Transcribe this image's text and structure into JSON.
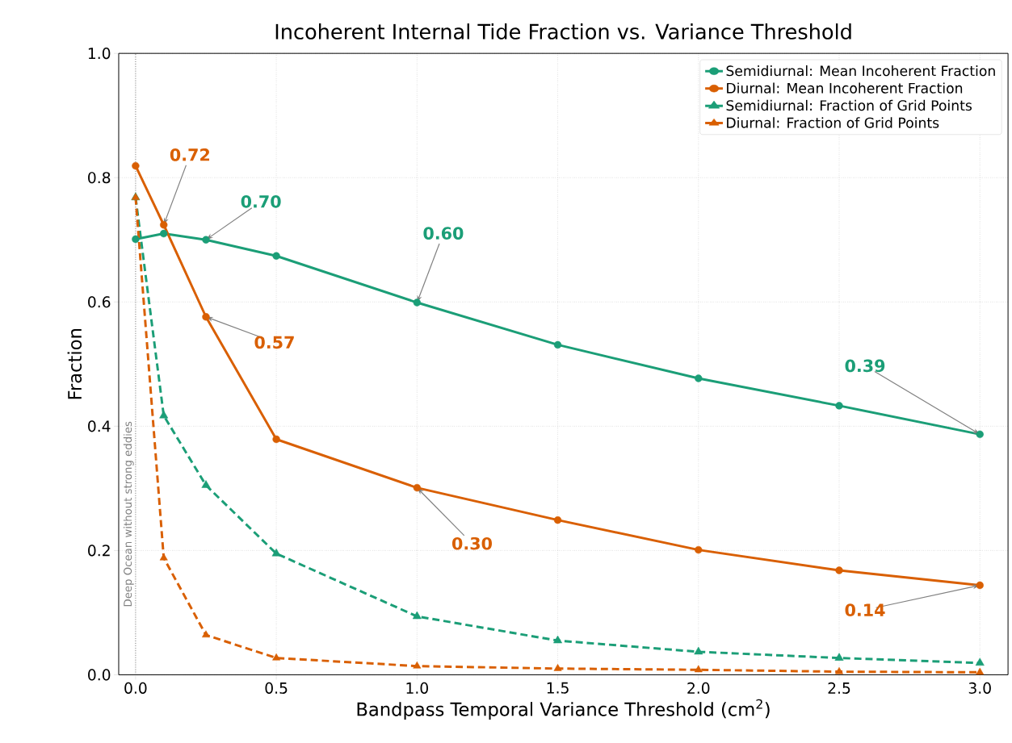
{
  "chart_data": {
    "type": "line",
    "title": "Incoherent Internal Tide Fraction vs. Variance Threshold",
    "xlabel": "Bandpass Temporal Variance Threshold (cm$^{2}$)",
    "ylabel": "Fraction",
    "x": [
      0,
      0.1,
      0.25,
      0.5,
      1.0,
      1.5,
      2.0,
      2.5,
      3.0
    ],
    "series": [
      {
        "name": "Semidiurnal: Mean Incoherent Fraction",
        "color": "#1b9e77",
        "marker": "circle",
        "line_style": "solid",
        "values": [
          0.701,
          0.71,
          0.7,
          0.674,
          0.599,
          0.531,
          0.477,
          0.433,
          0.387
        ]
      },
      {
        "name": "Diurnal: Mean Incoherent Fraction",
        "color": "#d95f02",
        "marker": "circle",
        "line_style": "solid",
        "values": [
          0.819,
          0.724,
          0.576,
          0.379,
          0.301,
          0.249,
          0.201,
          0.168,
          0.144
        ]
      },
      {
        "name": "Semidiurnal: Fraction of Grid Points",
        "color": "#1b9e77",
        "marker": "triangle",
        "line_style": "dashed",
        "values": [
          0.768,
          0.417,
          0.305,
          0.195,
          0.094,
          0.055,
          0.037,
          0.027,
          0.019
        ]
      },
      {
        "name": "Diurnal: Fraction of Grid Points",
        "color": "#d95f02",
        "marker": "triangle",
        "line_style": "dashed",
        "values": [
          0.768,
          0.188,
          0.064,
          0.027,
          0.014,
          0.01,
          0.008,
          0.005,
          0.004
        ]
      }
    ],
    "xlim": [
      -0.06,
      3.1
    ],
    "ylim": [
      0,
      1
    ],
    "xticks": [
      {
        "value": 0,
        "label": "0.0"
      },
      {
        "value": 0.5,
        "label": "0.5"
      },
      {
        "value": 1,
        "label": "1.0"
      },
      {
        "value": 1.5,
        "label": "1.5"
      },
      {
        "value": 2,
        "label": "2.0"
      },
      {
        "value": 2.5,
        "label": "2.5"
      },
      {
        "value": 3,
        "label": "3.0"
      }
    ],
    "yticks": [
      {
        "value": 0,
        "label": "0.0"
      },
      {
        "value": 0.2,
        "label": "0.2"
      },
      {
        "value": 0.4,
        "label": "0.4"
      },
      {
        "value": 0.6,
        "label": "0.6"
      },
      {
        "value": 0.8,
        "label": "0.8"
      },
      {
        "value": 1,
        "label": "1.0"
      }
    ],
    "grid": true,
    "legend": "top right",
    "ref_lines": [
      {
        "axis": "x",
        "value": 0,
        "label": "Deep Ocean without strong eddies",
        "color": "#808080",
        "line_style": "dotted"
      }
    ],
    "annotations": [
      {
        "text": "0.72",
        "x": 0.1,
        "y": 0.724
      },
      {
        "text": "0.70",
        "x": 0.25,
        "y": 0.7
      },
      {
        "text": "0.60",
        "x": 1.0,
        "y": 0.599
      },
      {
        "text": "0.57",
        "x": 0.25,
        "y": 0.576
      },
      {
        "text": "0.30",
        "x": 1.0,
        "y": 0.301
      },
      {
        "text": "0.39",
        "x": 3.0,
        "y": 0.387
      },
      {
        "text": "0.14",
        "x": 3.0,
        "y": 0.144
      }
    ]
  }
}
